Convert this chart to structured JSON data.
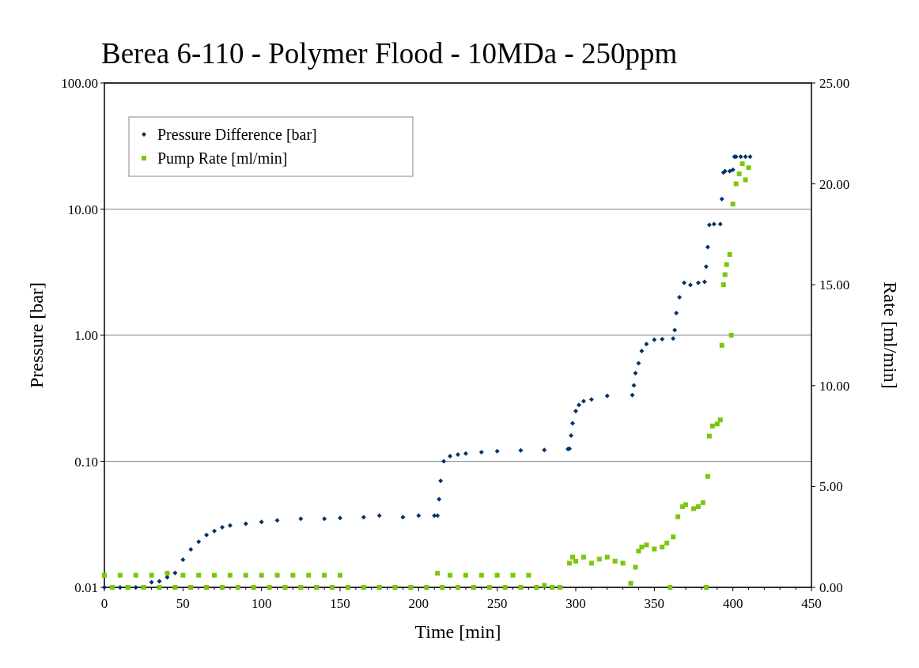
{
  "chart_data": {
    "type": "scatter",
    "title": "Berea 6-110 - Polymer Flood - 10MDa - 250ppm",
    "xlabel": "Time [min]",
    "ylabel": "Pressure [bar]",
    "y2label": "Rate [ml/min]",
    "xlim": [
      0,
      450
    ],
    "xticks": [
      0,
      50,
      100,
      150,
      200,
      250,
      300,
      350,
      400,
      450
    ],
    "ylim": [
      0.01,
      100
    ],
    "yticks": [
      {
        "value": 0.01,
        "label": "0.01"
      },
      {
        "value": 0.1,
        "label": "0.10"
      },
      {
        "value": 1,
        "label": "1.00"
      },
      {
        "value": 10,
        "label": "10.00"
      },
      {
        "value": 100,
        "label": "100.00"
      }
    ],
    "y2lim": [
      0,
      25
    ],
    "y2ticks": [
      {
        "value": 0,
        "label": "0.00"
      },
      {
        "value": 5,
        "label": "5.00"
      },
      {
        "value": 10,
        "label": "10.00"
      },
      {
        "value": 15,
        "label": "15.00"
      },
      {
        "value": 20,
        "label": "20.00"
      },
      {
        "value": 25,
        "label": "25.00"
      }
    ],
    "log": "y",
    "grid": "y",
    "legend": "top left",
    "series": [
      {
        "name": "Pressure Difference [bar]",
        "color": "#003366",
        "marker": "diamond",
        "x": [
          0,
          10,
          20,
          30,
          35,
          40,
          45,
          50,
          55,
          60,
          65,
          70,
          75,
          80,
          90,
          100,
          110,
          125,
          140,
          150,
          165,
          175,
          190,
          200,
          210,
          212,
          213,
          214,
          216,
          220,
          225,
          230,
          240,
          250,
          265,
          280,
          295,
          296,
          297,
          298,
          300,
          302,
          305,
          310,
          320,
          336,
          337,
          338,
          340,
          342,
          345,
          350,
          355,
          362,
          363,
          364,
          366,
          369,
          373,
          378,
          382,
          383,
          384,
          385,
          388,
          392,
          393,
          394,
          395,
          398,
          400,
          401,
          402,
          405,
          408,
          411
        ],
        "values": [
          0.01,
          0.01,
          0.01,
          0.011,
          0.0112,
          0.012,
          0.013,
          0.0166,
          0.02,
          0.023,
          0.026,
          0.028,
          0.03,
          0.031,
          0.032,
          0.033,
          0.034,
          0.035,
          0.035,
          0.0355,
          0.036,
          0.037,
          0.036,
          0.037,
          0.037,
          0.037,
          0.05,
          0.07,
          0.1,
          0.11,
          0.113,
          0.115,
          0.118,
          0.12,
          0.122,
          0.123,
          0.125,
          0.126,
          0.16,
          0.2,
          0.25,
          0.28,
          0.3,
          0.31,
          0.33,
          0.335,
          0.4,
          0.5,
          0.6,
          0.75,
          0.85,
          0.92,
          0.93,
          0.94,
          1.1,
          1.5,
          2.0,
          2.6,
          2.5,
          2.6,
          2.65,
          3.5,
          5.0,
          7.5,
          7.6,
          7.6,
          12,
          19.5,
          20,
          20,
          20.5,
          26,
          26,
          26,
          26,
          26
        ]
      },
      {
        "name": "Pump Rate [ml/min]",
        "color": "#7ac70c",
        "marker": "square",
        "axis": "y2",
        "x": [
          0,
          5,
          10,
          15,
          20,
          25,
          30,
          35,
          40,
          45,
          50,
          55,
          60,
          65,
          70,
          75,
          80,
          85,
          90,
          95,
          100,
          105,
          110,
          115,
          120,
          125,
          130,
          135,
          140,
          145,
          150,
          155,
          165,
          175,
          185,
          195,
          205,
          212,
          215,
          220,
          225,
          230,
          235,
          240,
          245,
          250,
          255,
          260,
          265,
          270,
          275,
          280,
          285,
          290,
          296,
          298,
          300,
          305,
          310,
          315,
          320,
          325,
          330,
          335,
          338,
          340,
          342,
          345,
          350,
          355,
          358,
          360,
          362,
          365,
          368,
          370,
          375,
          378,
          381,
          383,
          384,
          385,
          387,
          390,
          392,
          393,
          394,
          395,
          396,
          398,
          399,
          400,
          402,
          404,
          406,
          408,
          410
        ],
        "values": [
          0.6,
          0,
          0.6,
          0,
          0.6,
          0,
          0.6,
          0,
          0.7,
          0,
          0.6,
          0,
          0.6,
          0,
          0.6,
          0,
          0.6,
          0,
          0.6,
          0,
          0.6,
          0,
          0.6,
          0,
          0.6,
          0,
          0.6,
          0,
          0.6,
          0,
          0.6,
          0,
          0,
          0,
          0,
          0,
          0,
          0.7,
          0,
          0.6,
          0,
          0.6,
          0,
          0.6,
          0,
          0.6,
          0,
          0.6,
          0,
          0.6,
          0,
          0.1,
          0,
          0,
          1.2,
          1.5,
          1.3,
          1.5,
          1.2,
          1.4,
          1.5,
          1.3,
          1.2,
          0.2,
          1.0,
          1.8,
          2.0,
          2.1,
          1.9,
          2.0,
          2.2,
          0,
          2.5,
          3.5,
          4.0,
          4.1,
          3.9,
          4.0,
          4.2,
          0,
          5.5,
          7.5,
          8.0,
          8.1,
          8.3,
          12,
          15,
          15.5,
          16,
          16.5,
          12.5,
          19,
          20,
          20.5,
          21,
          20.2,
          20.8
        ]
      }
    ]
  }
}
